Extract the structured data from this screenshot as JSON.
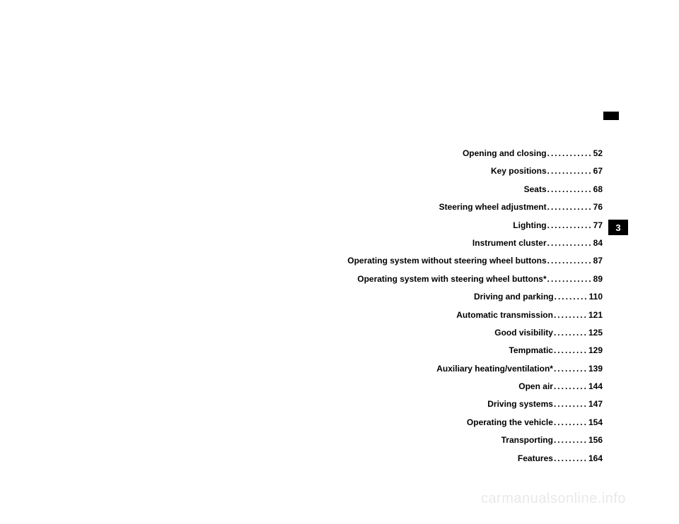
{
  "chapter_tab": "3",
  "toc": [
    {
      "label": "Opening and closing",
      "dots": "............",
      "page": "52"
    },
    {
      "label": "Key positions",
      "dots": "............",
      "page": "67"
    },
    {
      "label": "Seats",
      "dots": "............",
      "page": "68"
    },
    {
      "label": "Steering wheel adjustment",
      "dots": "............",
      "page": "76"
    },
    {
      "label": "Lighting",
      "dots": "............",
      "page": "77"
    },
    {
      "label": "Instrument cluster",
      "dots": "............",
      "page": "84"
    },
    {
      "label": "Operating system without steering wheel buttons",
      "dots": "............",
      "page": "87"
    },
    {
      "label": "Operating system with steering wheel buttons*",
      "dots": "............",
      "page": "89"
    },
    {
      "label": "Driving and parking",
      "dots": ".........",
      "page": " 110"
    },
    {
      "label": "Automatic transmission",
      "dots": ".........",
      "page": " 121"
    },
    {
      "label": "Good visibility",
      "dots": ".........",
      "page": " 125"
    },
    {
      "label": "Tempmatic",
      "dots": ".........",
      "page": " 129"
    },
    {
      "label": "Auxiliary heating/ventilation*",
      "dots": ".........",
      "page": " 139"
    },
    {
      "label": "Open air",
      "dots": ".........",
      "page": " 144"
    },
    {
      "label": "Driving systems",
      "dots": ".........",
      "page": " 147"
    },
    {
      "label": "Operating the vehicle",
      "dots": ".........",
      "page": " 154"
    },
    {
      "label": "Transporting",
      "dots": ".........",
      "page": " 156"
    },
    {
      "label": "Features",
      "dots": ".........",
      "page": " 164"
    }
  ],
  "watermark": "carmanualsonline.info"
}
